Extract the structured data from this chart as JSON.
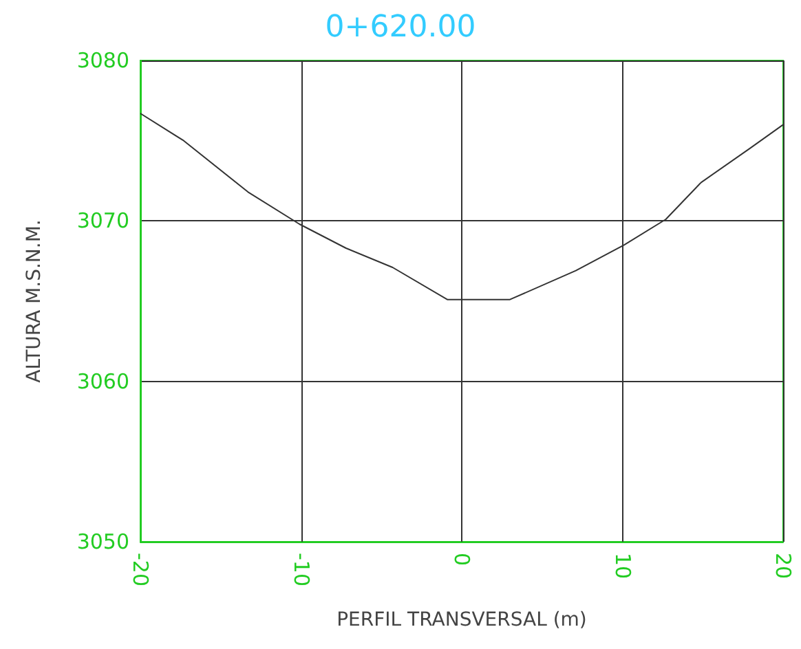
{
  "chart_data": {
    "type": "line",
    "title": "0+620.00",
    "xlabel": "PERFIL TRANSVERSAL (m)",
    "ylabel": "ALTURA M.S.N.M.",
    "x": [
      -20,
      -17.3,
      -13.3,
      -10.1,
      -7.2,
      -4.3,
      -0.9,
      3.0,
      7.1,
      10.1,
      12.7,
      14.9,
      17.9,
      20
    ],
    "series": [
      {
        "color": "#333333",
        "values": [
          3076.7,
          3075.0,
          3071.8,
          3069.8,
          3068.3,
          3067.1,
          3065.1,
          3065.1,
          3066.9,
          3068.5,
          3070.1,
          3072.4,
          3074.5,
          3076.0
        ]
      }
    ],
    "xlim": [
      -20,
      20
    ],
    "xticks": [
      -20,
      -10,
      0,
      10,
      20
    ],
    "ylim": [
      3050,
      3080
    ],
    "yticks": [
      3050,
      3060,
      3070,
      3080
    ],
    "grid": true,
    "marker": "none",
    "line_style": "solid"
  }
}
